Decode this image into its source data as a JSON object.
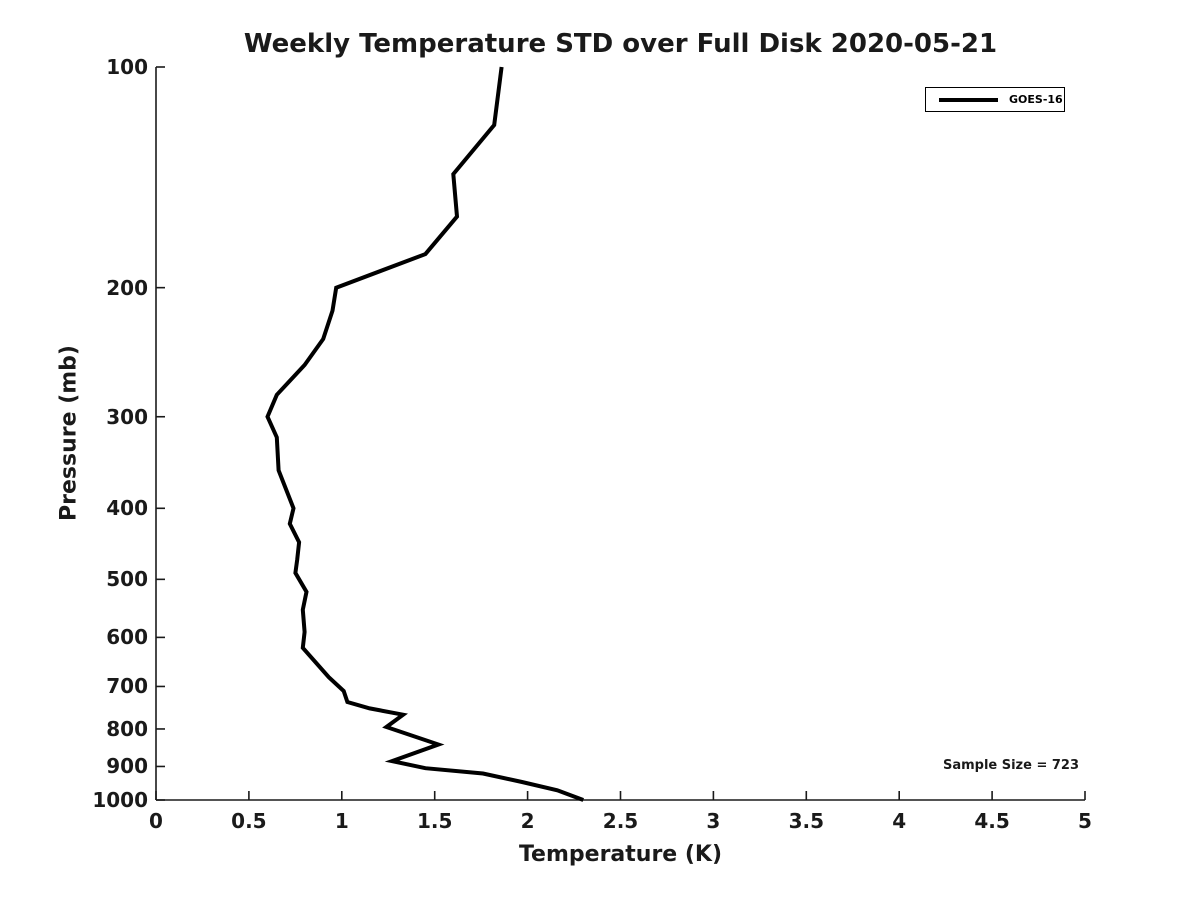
{
  "figure": {
    "background_color": "#ffffff",
    "text_color": "#1a1a1a",
    "line_color": "#000000"
  },
  "chart_data": {
    "type": "line",
    "title": "Weekly Temperature STD over Full Disk 2020-05-21",
    "xlabel": "Temperature (K)",
    "ylabel": "Pressure (mb)",
    "xlim": [
      0,
      5
    ],
    "ylim": [
      100,
      1000
    ],
    "yscale": "log",
    "y_axis_inverted": true,
    "grid": false,
    "box": false,
    "x_ticks": [
      {
        "value": 0,
        "label": "0"
      },
      {
        "value": 0.5,
        "label": "0.5"
      },
      {
        "value": 1,
        "label": "1"
      },
      {
        "value": 1.5,
        "label": "1.5"
      },
      {
        "value": 2,
        "label": "2"
      },
      {
        "value": 2.5,
        "label": "2.5"
      },
      {
        "value": 3,
        "label": "3"
      },
      {
        "value": 3.5,
        "label": "3.5"
      },
      {
        "value": 4,
        "label": "4"
      },
      {
        "value": 4.5,
        "label": "4.5"
      },
      {
        "value": 5,
        "label": "5"
      }
    ],
    "y_ticks": [
      {
        "value": 100,
        "label": "100"
      },
      {
        "value": 200,
        "label": "200"
      },
      {
        "value": 300,
        "label": "300"
      },
      {
        "value": 400,
        "label": "400"
      },
      {
        "value": 500,
        "label": "500"
      },
      {
        "value": 600,
        "label": "600"
      },
      {
        "value": 700,
        "label": "700"
      },
      {
        "value": 800,
        "label": "800"
      },
      {
        "value": 900,
        "label": "900"
      },
      {
        "value": 1000,
        "label": "1000"
      }
    ],
    "legend": {
      "position": "top-right",
      "entries": [
        {
          "label": "GOES-16",
          "color": "#000000",
          "line_style": "solid"
        }
      ]
    },
    "annotations": [
      {
        "text": "Sample Size = 723",
        "position": "bottom-right"
      }
    ],
    "series": [
      {
        "name": "GOES-16",
        "color": "#000000",
        "points": [
          {
            "temperature_K": 1.86,
            "pressure_mb": 100
          },
          {
            "temperature_K": 1.82,
            "pressure_mb": 120
          },
          {
            "temperature_K": 1.6,
            "pressure_mb": 140
          },
          {
            "temperature_K": 1.62,
            "pressure_mb": 160
          },
          {
            "temperature_K": 1.45,
            "pressure_mb": 180
          },
          {
            "temperature_K": 0.97,
            "pressure_mb": 200
          },
          {
            "temperature_K": 0.95,
            "pressure_mb": 215
          },
          {
            "temperature_K": 0.9,
            "pressure_mb": 235
          },
          {
            "temperature_K": 0.8,
            "pressure_mb": 255
          },
          {
            "temperature_K": 0.65,
            "pressure_mb": 280
          },
          {
            "temperature_K": 0.6,
            "pressure_mb": 300
          },
          {
            "temperature_K": 0.65,
            "pressure_mb": 320
          },
          {
            "temperature_K": 0.66,
            "pressure_mb": 355
          },
          {
            "temperature_K": 0.74,
            "pressure_mb": 400
          },
          {
            "temperature_K": 0.72,
            "pressure_mb": 420
          },
          {
            "temperature_K": 0.77,
            "pressure_mb": 445
          },
          {
            "temperature_K": 0.76,
            "pressure_mb": 470
          },
          {
            "temperature_K": 0.75,
            "pressure_mb": 490
          },
          {
            "temperature_K": 0.81,
            "pressure_mb": 520
          },
          {
            "temperature_K": 0.79,
            "pressure_mb": 550
          },
          {
            "temperature_K": 0.8,
            "pressure_mb": 590
          },
          {
            "temperature_K": 0.79,
            "pressure_mb": 620
          },
          {
            "temperature_K": 0.93,
            "pressure_mb": 680
          },
          {
            "temperature_K": 1.01,
            "pressure_mb": 710
          },
          {
            "temperature_K": 1.03,
            "pressure_mb": 735
          },
          {
            "temperature_K": 1.15,
            "pressure_mb": 750
          },
          {
            "temperature_K": 1.33,
            "pressure_mb": 765
          },
          {
            "temperature_K": 1.24,
            "pressure_mb": 795
          },
          {
            "temperature_K": 1.52,
            "pressure_mb": 840
          },
          {
            "temperature_K": 1.27,
            "pressure_mb": 885
          },
          {
            "temperature_K": 1.45,
            "pressure_mb": 905
          },
          {
            "temperature_K": 1.76,
            "pressure_mb": 920
          },
          {
            "temperature_K": 1.97,
            "pressure_mb": 945
          },
          {
            "temperature_K": 2.16,
            "pressure_mb": 970
          },
          {
            "temperature_K": 2.3,
            "pressure_mb": 1000
          }
        ]
      }
    ]
  }
}
